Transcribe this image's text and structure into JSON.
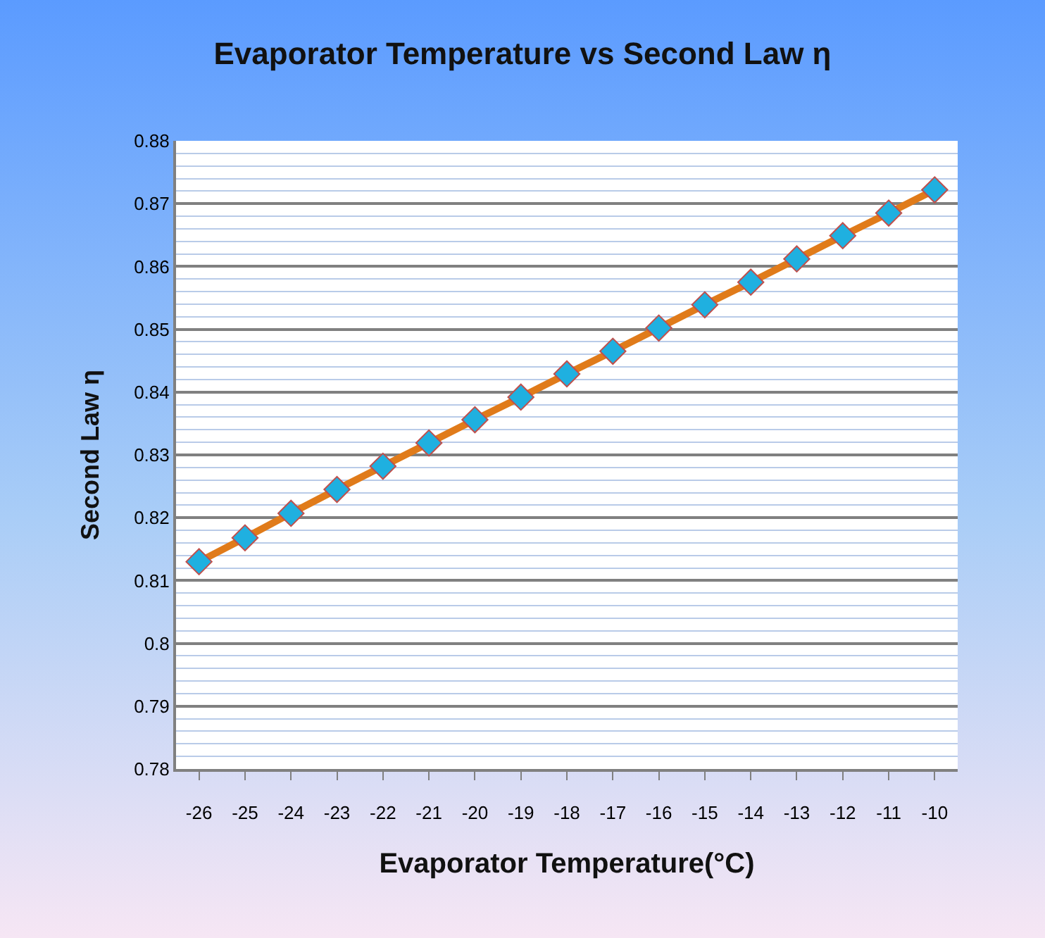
{
  "chart_data": {
    "type": "line",
    "title": "Evaporator Temperature vs Second Law η",
    "xlabel": "Evaporator Temperature(°C)",
    "ylabel": "Second Law η",
    "categories": [
      "-26",
      "-25",
      "-24",
      "-23",
      "-22",
      "-21",
      "-20",
      "-19",
      "-18",
      "-17",
      "-16",
      "-15",
      "-14",
      "-13",
      "-12",
      "-11",
      "-10"
    ],
    "series": [
      {
        "color": "#e07b1a",
        "values": [
          0.813,
          0.8168,
          0.8207,
          0.8245,
          0.8282,
          0.8319,
          0.8356,
          0.8392,
          0.8429,
          0.8465,
          0.8502,
          0.8539,
          0.8575,
          0.8612,
          0.8649,
          0.8685,
          0.8722
        ]
      }
    ],
    "ylim": [
      0.78,
      0.88
    ],
    "yticks": [
      0.78,
      {
        "value": 0.782,
        "label": null
      },
      {
        "value": 0.784,
        "label": null
      },
      {
        "value": 0.786,
        "label": null
      },
      {
        "value": 0.788,
        "label": null
      },
      0.79,
      {
        "value": 0.792,
        "label": null
      },
      {
        "value": 0.794,
        "label": null
      },
      {
        "value": 0.796,
        "label": null
      },
      {
        "value": 0.798,
        "label": null
      },
      {
        "value": 0.8,
        "label": "0.8"
      },
      {
        "value": 0.802,
        "label": null
      },
      {
        "value": 0.804,
        "label": null
      },
      {
        "value": 0.806,
        "label": null
      },
      {
        "value": 0.808,
        "label": null
      },
      0.81,
      {
        "value": 0.812,
        "label": null
      },
      {
        "value": 0.814,
        "label": null
      },
      {
        "value": 0.816,
        "label": null
      },
      {
        "value": 0.818,
        "label": null
      },
      0.82,
      {
        "value": 0.822,
        "label": null
      },
      {
        "value": 0.824,
        "label": null
      },
      {
        "value": 0.826,
        "label": null
      },
      {
        "value": 0.828,
        "label": null
      },
      0.83,
      {
        "value": 0.832,
        "label": null
      },
      {
        "value": 0.834,
        "label": null
      },
      {
        "value": 0.836,
        "label": null
      },
      {
        "value": 0.838,
        "label": null
      },
      0.84,
      {
        "value": 0.842,
        "label": null
      },
      {
        "value": 0.844,
        "label": null
      },
      {
        "value": 0.846,
        "label": null
      },
      {
        "value": 0.848,
        "label": null
      },
      0.85,
      {
        "value": 0.852,
        "label": null
      },
      {
        "value": 0.854,
        "label": null
      },
      {
        "value": 0.856,
        "label": null
      },
      {
        "value": 0.858,
        "label": null
      },
      0.86,
      {
        "value": 0.862,
        "label": null
      },
      {
        "value": 0.864,
        "label": null
      },
      {
        "value": 0.866,
        "label": null
      },
      {
        "value": 0.868,
        "label": null
      },
      0.87,
      {
        "value": 0.872,
        "label": null
      },
      {
        "value": 0.874,
        "label": null
      },
      {
        "value": 0.876,
        "label": null
      },
      {
        "value": 0.878,
        "label": null
      },
      0.88
    ],
    "grid": "y",
    "marker": "diamond",
    "line_style": "solid"
  }
}
